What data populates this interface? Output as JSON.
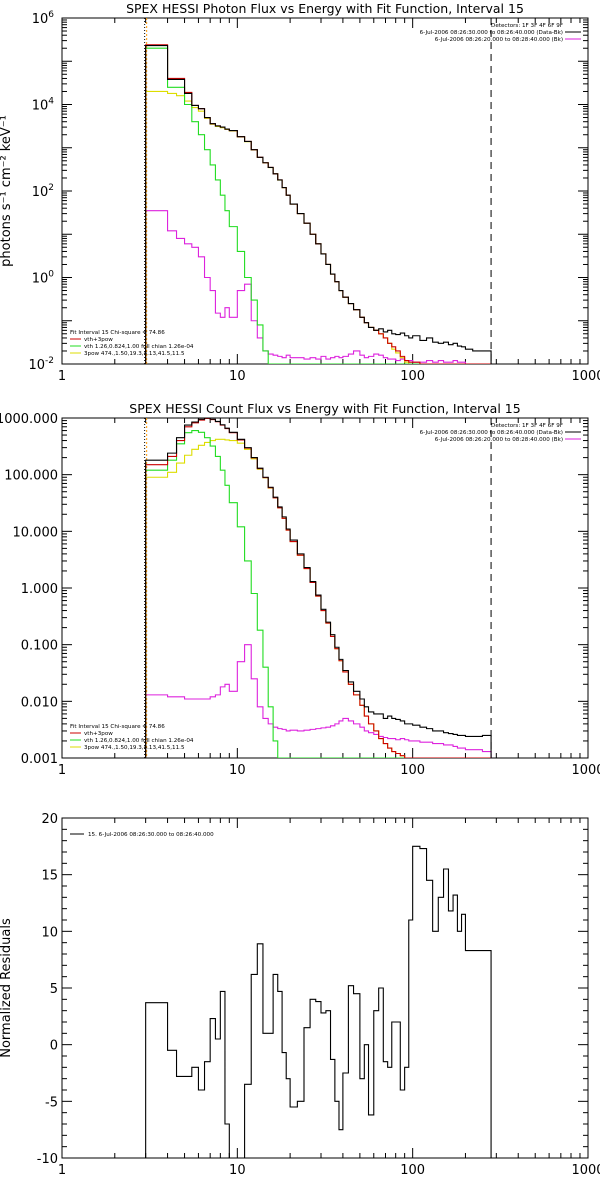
{
  "colors": {
    "data": "#000000",
    "total": "#cc0000",
    "thermal": "#22dd22",
    "powerlaw": "#dddd00",
    "background": "#dd22dd",
    "threshold": "#ff9900"
  },
  "chart_data": [
    {
      "type": "line",
      "title": "SPEX HESSI Photon Flux vs Energy with Fit Function, Interval 15",
      "ylabel": "photons s⁻¹ cm⁻² keV⁻¹",
      "xlabel": "",
      "xscale": "log",
      "yscale": "log",
      "xlim": [
        1,
        1000
      ],
      "ylim": [
        0.01,
        1000000
      ],
      "x_ticks": [
        "1",
        "10",
        "100",
        "1000"
      ],
      "y_ticks": [
        {
          "value": 0.01,
          "base": "10",
          "exp": "-2"
        },
        {
          "value": 1,
          "base": "10",
          "exp": "0"
        },
        {
          "value": 100,
          "base": "10",
          "exp": "2"
        },
        {
          "value": 10000,
          "base": "10",
          "exp": "4"
        },
        {
          "value": 1000000,
          "base": "10",
          "exp": "6"
        }
      ],
      "legend_right": [
        "Detectors: 1F 3F 4F 6F 9F",
        "6-Jul-2006 08:26:30.000 to 08:26:40.000 (Data-Bk)",
        "6-Jul-2006 08:26:20.000 to 08:28:40.000 (Bk)"
      ],
      "legend_left": [
        "Fit Interval 15   Chi-square = 74.86",
        "vth+3pow",
        "vth 1.26,0.824,1.00  full chian 1.26e-04",
        "3pow 474.,1.50,19.3,4.13,41.5,11.5"
      ],
      "vlines": [
        3,
        3,
        280
      ],
      "bin_edges": [
        3,
        3.5,
        4,
        4.5,
        5,
        5.5,
        6,
        6.5,
        7,
        7.5,
        8,
        8.5,
        9,
        10,
        11,
        12,
        13,
        14,
        15,
        16,
        17,
        18,
        19,
        20,
        22,
        24,
        26,
        28,
        30,
        32,
        34,
        36,
        38,
        40,
        43,
        46,
        50,
        53,
        56,
        60,
        64,
        68,
        72,
        76,
        80,
        85,
        90,
        95,
        100,
        110,
        120,
        130,
        140,
        150,
        160,
        170,
        180,
        190,
        200,
        220,
        250,
        280
      ],
      "series": [
        {
          "name": "data",
          "color_key": "data",
          "values": [
            230000,
            230000,
            38000,
            38000,
            18000,
            9500,
            8000,
            5000,
            3600,
            3200,
            3000,
            2700,
            2500,
            1800,
            1400,
            900,
            600,
            450,
            350,
            250,
            180,
            120,
            80,
            50,
            30,
            18,
            10,
            6,
            3.5,
            2,
            1.2,
            0.8,
            0.5,
            0.35,
            0.25,
            0.18,
            0.12,
            0.09,
            0.07,
            0.06,
            0.065,
            0.055,
            0.06,
            0.05,
            0.048,
            0.052,
            0.045,
            0.04,
            0.045,
            0.035,
            0.04,
            0.032,
            0.03,
            0.032,
            0.028,
            0.03,
            0.026,
            0.025,
            0.022,
            0.02,
            0.02
          ]
        },
        {
          "name": "vth+3pow",
          "color_key": "total",
          "values": [
            240000,
            240000,
            40000,
            40000,
            19000,
            9500,
            8000,
            5000,
            3600,
            3200,
            3000,
            2700,
            2500,
            1800,
            1400,
            900,
            600,
            450,
            350,
            250,
            180,
            120,
            80,
            50,
            30,
            18,
            10,
            6,
            3.5,
            2,
            1.2,
            0.8,
            0.5,
            0.35,
            0.25,
            0.18,
            0.12,
            0.09,
            0.07,
            0.06,
            0.05,
            0.04,
            0.03,
            0.025,
            0.02,
            0.015,
            0.012,
            0.011,
            0.011,
            0.01,
            0.01,
            0.01,
            0.01,
            0.01,
            0.01,
            0.01,
            0.01,
            0.01,
            0.01,
            0.01,
            0.01
          ]
        },
        {
          "name": "vth",
          "color_key": "thermal",
          "values": [
            200000,
            200000,
            25000,
            25000,
            10000,
            4000,
            2000,
            900,
            400,
            180,
            80,
            35,
            15,
            4,
            1,
            0.3,
            0.08,
            0.02,
            0.01,
            0.01,
            0.01,
            0.01,
            0.01,
            0.01,
            0.01,
            0.01,
            0.01,
            0.01,
            0.01,
            0.01,
            0.01,
            0.01,
            0.01,
            0.01,
            0.01,
            0.01,
            0.01,
            0.01,
            0.01,
            0.01,
            0.01,
            0.01,
            0.01,
            0.01,
            0.01,
            0.01,
            0.01,
            0.01,
            0.01,
            0.01,
            0.01,
            0.01,
            0.01,
            0.01,
            0.01,
            0.01,
            0.01,
            0.01,
            0.01,
            0.01,
            0.01
          ]
        },
        {
          "name": "3pow",
          "color_key": "powerlaw",
          "values": [
            20000,
            20000,
            18000,
            16000,
            12000,
            8500,
            7000,
            4800,
            3500,
            3100,
            2900,
            2650,
            2450,
            1780,
            1380,
            890,
            595,
            448,
            348,
            249,
            179,
            119,
            80,
            50,
            30,
            18,
            10,
            6,
            3.5,
            2,
            1.2,
            0.8,
            0.5,
            0.35,
            0.25,
            0.18,
            0.12,
            0.09,
            0.07,
            0.06,
            0.05,
            0.04,
            0.03,
            0.022,
            0.018,
            0.014,
            0.011,
            0.01,
            0.01,
            0.01,
            0.01,
            0.01,
            0.01,
            0.01,
            0.01,
            0.01,
            0.01,
            0.01,
            0.01,
            0.01,
            0.01
          ]
        },
        {
          "name": "background",
          "color_key": "background",
          "values": [
            35,
            35,
            12,
            8,
            6,
            5,
            3,
            1,
            0.5,
            0.15,
            0.12,
            0.2,
            0.12,
            0.5,
            0.7,
            0.1,
            0.04,
            0.02,
            0.017,
            0.016,
            0.015,
            0.014,
            0.016,
            0.014,
            0.014,
            0.013,
            0.014,
            0.013,
            0.015,
            0.013,
            0.014,
            0.015,
            0.014,
            0.015,
            0.017,
            0.02,
            0.016,
            0.014,
            0.015,
            0.017,
            0.016,
            0.014,
            0.013,
            0.013,
            0.012,
            0.013,
            0.012,
            0.012,
            0.011,
            0.011,
            0.012,
            0.011,
            0.012,
            0.011,
            0.011,
            0.012,
            0.011,
            0.011,
            0.01,
            0.01,
            0.01
          ]
        }
      ]
    },
    {
      "type": "line",
      "title": "SPEX HESSI Count Flux vs Energy with Fit Function, Interval 15",
      "ylabel": "",
      "xlabel": "",
      "xscale": "log",
      "yscale": "log",
      "xlim": [
        1,
        1000
      ],
      "ylim": [
        0.001,
        1000
      ],
      "x_ticks": [
        "1",
        "10",
        "100",
        "1000"
      ],
      "y_ticks": [
        {
          "value": 0.001,
          "label": "0.001"
        },
        {
          "value": 0.01,
          "label": "0.010"
        },
        {
          "value": 0.1,
          "label": "0.100"
        },
        {
          "value": 1,
          "label": "1.000"
        },
        {
          "value": 10,
          "label": "10.000"
        },
        {
          "value": 100,
          "label": "100.000"
        },
        {
          "value": 1000,
          "label": "1000.000"
        }
      ],
      "legend_right": [
        "Detectors: 1F 3F 4F 6F 9F",
        "6-Jul-2006 08:26:30.000 to 08:26:40.000 (Data-Bk)",
        "6-Jul-2006 08:26:20.000 to 08:28:40.000 (Bk)"
      ],
      "legend_left": [
        "Fit Interval 15   Chi-square = 74.86",
        "vth+3pow",
        "vth 1.26,0.824,1.00  full chian 1.26e-04",
        "3pow 474.,1.50,19.3,4.13,41.5,11.5"
      ],
      "vlines": [
        3,
        3,
        280
      ],
      "bin_edges": [
        3,
        3.5,
        4,
        4.5,
        5,
        5.5,
        6,
        6.5,
        7,
        7.5,
        8,
        8.5,
        9,
        10,
        11,
        12,
        13,
        14,
        15,
        16,
        17,
        18,
        19,
        20,
        22,
        24,
        26,
        28,
        30,
        32,
        34,
        36,
        38,
        40,
        43,
        46,
        50,
        53,
        56,
        60,
        64,
        68,
        72,
        76,
        80,
        85,
        90,
        95,
        100,
        110,
        120,
        130,
        140,
        150,
        160,
        170,
        180,
        190,
        200,
        220,
        250,
        280
      ],
      "series": [
        {
          "name": "data",
          "color_key": "data",
          "values": [
            180,
            180,
            240,
            450,
            750,
            850,
            950,
            1000,
            950,
            870,
            760,
            660,
            560,
            420,
            300,
            200,
            130,
            90,
            60,
            40,
            27,
            18,
            11,
            7,
            4,
            2.3,
            1.3,
            0.75,
            0.42,
            0.25,
            0.15,
            0.09,
            0.055,
            0.035,
            0.022,
            0.015,
            0.011,
            0.008,
            0.0065,
            0.006,
            0.006,
            0.005,
            0.0055,
            0.005,
            0.0048,
            0.0045,
            0.004,
            0.004,
            0.0038,
            0.0035,
            0.0033,
            0.003,
            0.003,
            0.0028,
            0.0027,
            0.0026,
            0.0025,
            0.0025,
            0.0024,
            0.0024,
            0.0025
          ]
        },
        {
          "name": "vth+3pow",
          "color_key": "total",
          "values": [
            150,
            150,
            210,
            400,
            700,
            820,
            920,
            980,
            940,
            860,
            750,
            650,
            550,
            410,
            295,
            198,
            128,
            89,
            59,
            39,
            26,
            17,
            10.5,
            6.6,
            3.8,
            2.2,
            1.25,
            0.72,
            0.4,
            0.24,
            0.14,
            0.085,
            0.052,
            0.033,
            0.02,
            0.013,
            0.0085,
            0.0055,
            0.004,
            0.003,
            0.0022,
            0.0018,
            0.0015,
            0.0013,
            0.0012,
            0.0011,
            0.001,
            0.001,
            0.001,
            0.001,
            0.001,
            0.001,
            0.001,
            0.001,
            0.001,
            0.001,
            0.001,
            0.001,
            0.001,
            0.001,
            0.001
          ]
        },
        {
          "name": "vth",
          "color_key": "thermal",
          "values": [
            120,
            120,
            180,
            350,
            550,
            600,
            560,
            450,
            320,
            210,
            120,
            65,
            32,
            12,
            3,
            0.8,
            0.18,
            0.04,
            0.008,
            0.002,
            0.001,
            0.001,
            0.001,
            0.001,
            0.001,
            0.001,
            0.001,
            0.001,
            0.001,
            0.001,
            0.001,
            0.001,
            0.001,
            0.001,
            0.001,
            0.001,
            0.001,
            0.001,
            0.001,
            0.001,
            0.001,
            0.001,
            0.001,
            0.001,
            0.001,
            0.001,
            0.001,
            0.001,
            0.001,
            0.001,
            0.001,
            0.001,
            0.001,
            0.001,
            0.001,
            0.001,
            0.001,
            0.001,
            0.001,
            0.001,
            0.001
          ]
        },
        {
          "name": "3pow",
          "color_key": "powerlaw",
          "values": [
            90,
            90,
            110,
            160,
            220,
            280,
            330,
            370,
            400,
            420,
            420,
            410,
            400,
            360,
            280,
            190,
            125,
            88,
            58,
            39,
            26,
            17,
            10.5,
            6.6,
            3.8,
            2.2,
            1.25,
            0.72,
            0.4,
            0.24,
            0.14,
            0.085,
            0.052,
            0.033,
            0.02,
            0.013,
            0.0085,
            0.0055,
            0.004,
            0.003,
            0.0022,
            0.0018,
            0.0015,
            0.0013,
            0.0012,
            0.0011,
            0.001,
            0.001,
            0.001,
            0.001,
            0.001,
            0.001,
            0.001,
            0.001,
            0.001,
            0.001,
            0.001,
            0.001,
            0.001,
            0.001,
            0.001
          ]
        },
        {
          "name": "background",
          "color_key": "background",
          "values": [
            0.013,
            0.013,
            0.012,
            0.012,
            0.011,
            0.011,
            0.011,
            0.011,
            0.012,
            0.013,
            0.018,
            0.02,
            0.015,
            0.05,
            0.1,
            0.025,
            0.008,
            0.005,
            0.004,
            0.0035,
            0.0033,
            0.0032,
            0.003,
            0.0031,
            0.003,
            0.0031,
            0.0032,
            0.0033,
            0.0034,
            0.0035,
            0.0037,
            0.004,
            0.0045,
            0.005,
            0.0045,
            0.004,
            0.0035,
            0.003,
            0.0028,
            0.0026,
            0.0024,
            0.0023,
            0.0022,
            0.0022,
            0.0021,
            0.0022,
            0.0021,
            0.002,
            0.002,
            0.0019,
            0.0019,
            0.0018,
            0.0018,
            0.0017,
            0.0017,
            0.0016,
            0.0015,
            0.0015,
            0.0014,
            0.0014,
            0.0013
          ]
        }
      ]
    },
    {
      "type": "line",
      "title": "",
      "ylabel": "Normalized Residuals",
      "xlabel": "",
      "xscale": "log",
      "yscale": "linear",
      "xlim": [
        1,
        1000
      ],
      "ylim": [
        -10,
        20
      ],
      "x_ticks": [
        "1",
        "10",
        "100",
        "1000"
      ],
      "y_ticks": [
        {
          "value": -10,
          "label": "-10"
        },
        {
          "value": -5,
          "label": "-5"
        },
        {
          "value": 0,
          "label": "0"
        },
        {
          "value": 5,
          "label": "5"
        },
        {
          "value": 10,
          "label": "10"
        },
        {
          "value": 15,
          "label": "15"
        },
        {
          "value": 20,
          "label": "20"
        }
      ],
      "legend_left": [
        "15.  6-Jul-2006 08:26:30.000 to 08:26:40.000"
      ],
      "bin_edges": [
        3,
        3.5,
        4,
        4.5,
        5,
        5.5,
        6,
        6.5,
        7,
        7.5,
        8,
        8.5,
        9,
        10,
        11,
        12,
        13,
        14,
        15,
        16,
        17,
        18,
        19,
        20,
        22,
        24,
        26,
        28,
        30,
        32,
        34,
        36,
        38,
        40,
        43,
        46,
        50,
        53,
        56,
        60,
        64,
        68,
        72,
        76,
        80,
        85,
        90,
        95,
        100,
        110,
        120,
        130,
        140,
        150,
        160,
        170,
        180,
        190,
        200,
        220,
        250,
        280
      ],
      "series": [
        {
          "name": "15.  6-Jul-2006 08:26:30.000 to 08:26:40.000",
          "color_key": "data",
          "values": [
            3.7,
            3.7,
            -0.5,
            -2.8,
            -2.8,
            -2,
            -4,
            -1.5,
            2.3,
            0.5,
            4.7,
            -7,
            -10,
            -10,
            -3.5,
            6.2,
            8.9,
            1,
            1,
            6.2,
            4.7,
            -0.7,
            -3,
            -5.5,
            -5,
            1.5,
            4,
            3.8,
            2.8,
            3,
            -1.3,
            -5,
            -7.5,
            -2.5,
            5.2,
            4.5,
            -3,
            0,
            -6.2,
            3,
            5,
            -1.5,
            -2,
            2,
            2,
            -4,
            -2,
            11,
            17.5,
            17.3,
            14.5,
            10,
            13,
            15.5,
            11.8,
            13.2,
            10,
            11.5,
            8.3,
            8.3,
            8.3
          ]
        }
      ]
    }
  ]
}
